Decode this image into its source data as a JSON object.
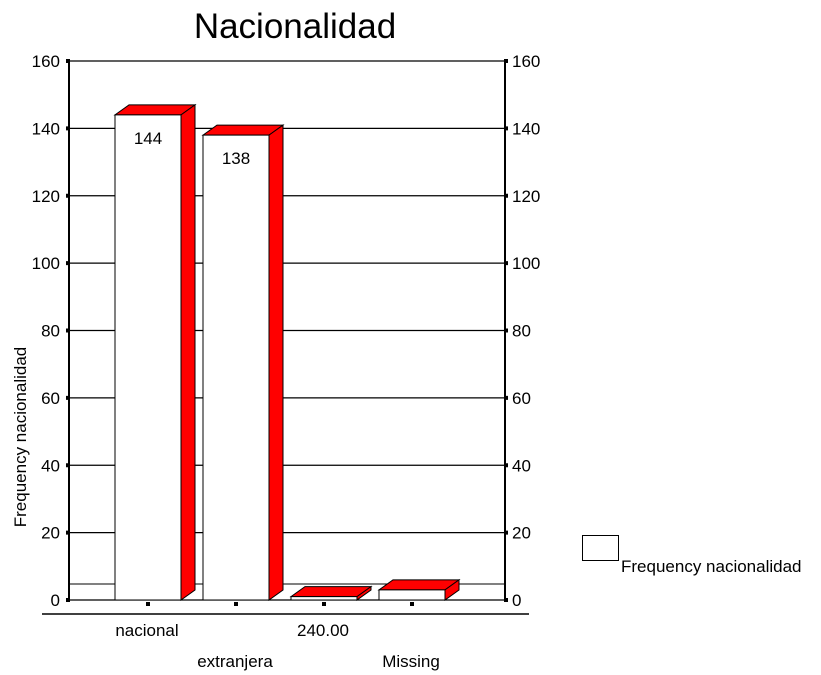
{
  "chart_data": {
    "type": "bar",
    "title": "Nacionalidad",
    "ylabel": "Frequency nacionalidad",
    "categories": [
      "nacional",
      "extranjera",
      "240.00",
      "Missing"
    ],
    "series": [
      {
        "name": "Frequency nacionalidad",
        "values": [
          144,
          138,
          1,
          3
        ]
      }
    ],
    "data_labels": [
      "144",
      "138",
      "",
      ""
    ],
    "ylim": [
      0,
      160
    ],
    "yticks": [
      0,
      20,
      40,
      60,
      80,
      100,
      120,
      140,
      160
    ],
    "grid": true,
    "legend": "right",
    "bar_front_color": "#ffffff",
    "bar_side_color": "#ff0000",
    "gridline_color": "#000000"
  },
  "legend": {
    "label": "Frequency nacionalidad"
  }
}
